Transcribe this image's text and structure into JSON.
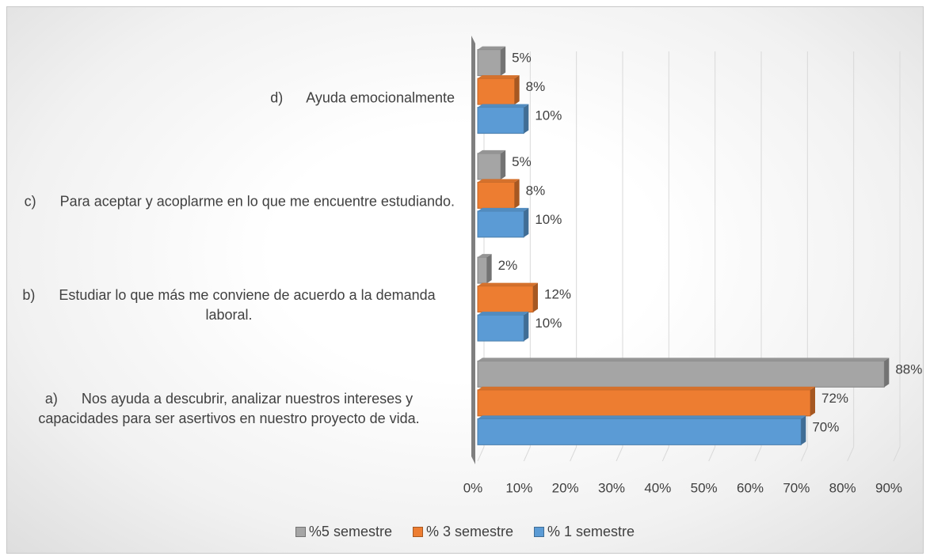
{
  "chart_data": {
    "type": "bar",
    "orientation": "horizontal",
    "categories": [
      "a)      Nos ayuda a descubrir, analizar nuestros intereses y capacidades para ser asertivos en nuestro proyecto de vida.",
      "b)      Estudiar lo que más me conviene de acuerdo a la demanda laboral.",
      "c)      Para aceptar y acoplarme en lo que me encuentre estudiando.",
      "d)      Ayuda emocionalmente"
    ],
    "series": [
      {
        "name": "%5 semestre",
        "color": "#a5a5a5",
        "values": [
          88,
          2,
          5,
          5
        ],
        "value_labels": [
          "88%",
          "2%",
          "5%",
          "5%"
        ]
      },
      {
        "name": "% 3 semestre",
        "color": "#ed7d31",
        "values": [
          72,
          12,
          8,
          8
        ],
        "value_labels": [
          "72%",
          "12%",
          "8%",
          "8%"
        ]
      },
      {
        "name": "% 1 semestre",
        "color": "#5b9bd5",
        "values": [
          70,
          10,
          10,
          10
        ],
        "value_labels": [
          "70%",
          "10%",
          "10%",
          "10%"
        ]
      }
    ],
    "xlim": [
      0,
      90
    ],
    "xticks": [
      {
        "value": 0,
        "label": "0%"
      },
      {
        "value": 10,
        "label": "10%"
      },
      {
        "value": 20,
        "label": "20%"
      },
      {
        "value": 30,
        "label": "30%"
      },
      {
        "value": 40,
        "label": "40%"
      },
      {
        "value": 50,
        "label": "50%"
      },
      {
        "value": 60,
        "label": "60%"
      },
      {
        "value": 70,
        "label": "70%"
      },
      {
        "value": 80,
        "label": "80%"
      },
      {
        "value": 90,
        "label": "90%"
      }
    ],
    "grid": true,
    "legend": "bottom"
  }
}
